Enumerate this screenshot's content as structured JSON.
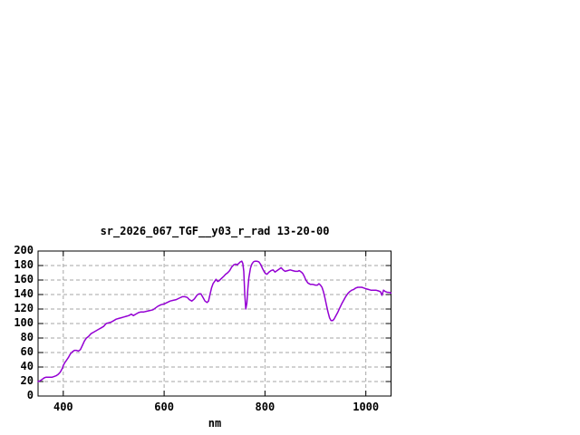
{
  "window": {
    "background": "#ffffff"
  },
  "colors": {
    "curve": "#9400d3",
    "grid": "#a6a6a6",
    "axis": "#000000",
    "text": "#000000",
    "background": "#ffffff"
  },
  "chart_data": {
    "type": "line",
    "title": "sr_2026_067_TGF__y03_r_rad 13-20-00",
    "xlabel": "nm",
    "ylabel": "",
    "xlim": [
      350,
      1050
    ],
    "ylim": [
      0,
      200
    ],
    "x_ticks": [
      400,
      600,
      800,
      1000
    ],
    "y_ticks": [
      0,
      20,
      40,
      60,
      80,
      100,
      120,
      140,
      160,
      180,
      200
    ],
    "grid": true,
    "legend": "none",
    "series": [
      {
        "name": "sr_2026_067_TGF__y03_r_rad",
        "color": "#9400d3",
        "points": [
          [
            350,
            20
          ],
          [
            354,
            21
          ],
          [
            358,
            23
          ],
          [
            362,
            25
          ],
          [
            366,
            26
          ],
          [
            370,
            26
          ],
          [
            374,
            26
          ],
          [
            378,
            26
          ],
          [
            382,
            27
          ],
          [
            386,
            28
          ],
          [
            390,
            30
          ],
          [
            394,
            33
          ],
          [
            398,
            38
          ],
          [
            400,
            42
          ],
          [
            403,
            46
          ],
          [
            406,
            49
          ],
          [
            410,
            53
          ],
          [
            414,
            58
          ],
          [
            418,
            61
          ],
          [
            422,
            63
          ],
          [
            426,
            63
          ],
          [
            430,
            62
          ],
          [
            434,
            64
          ],
          [
            438,
            70
          ],
          [
            442,
            76
          ],
          [
            446,
            80
          ],
          [
            450,
            82
          ],
          [
            455,
            86
          ],
          [
            460,
            88
          ],
          [
            465,
            90
          ],
          [
            470,
            92
          ],
          [
            475,
            94
          ],
          [
            480,
            96
          ],
          [
            485,
            100
          ],
          [
            490,
            101
          ],
          [
            495,
            102
          ],
          [
            500,
            104
          ],
          [
            505,
            106
          ],
          [
            510,
            107
          ],
          [
            515,
            108
          ],
          [
            520,
            109
          ],
          [
            525,
            110
          ],
          [
            530,
            111
          ],
          [
            535,
            113
          ],
          [
            539,
            111
          ],
          [
            544,
            113
          ],
          [
            549,
            115
          ],
          [
            554,
            116
          ],
          [
            560,
            116
          ],
          [
            566,
            117
          ],
          [
            572,
            118
          ],
          [
            578,
            119
          ],
          [
            582,
            121
          ],
          [
            588,
            124
          ],
          [
            594,
            126
          ],
          [
            600,
            127
          ],
          [
            606,
            129
          ],
          [
            612,
            131
          ],
          [
            618,
            132
          ],
          [
            624,
            133
          ],
          [
            630,
            135
          ],
          [
            636,
            137
          ],
          [
            641,
            137
          ],
          [
            646,
            136
          ],
          [
            650,
            133
          ],
          [
            655,
            131
          ],
          [
            660,
            134
          ],
          [
            665,
            139
          ],
          [
            669,
            141
          ],
          [
            673,
            141
          ],
          [
            677,
            136
          ],
          [
            681,
            131
          ],
          [
            685,
            129
          ],
          [
            688,
            131
          ],
          [
            691,
            140
          ],
          [
            694,
            149
          ],
          [
            697,
            155
          ],
          [
            700,
            158
          ],
          [
            703,
            161
          ],
          [
            706,
            158
          ],
          [
            709,
            159
          ],
          [
            712,
            161
          ],
          [
            715,
            163
          ],
          [
            718,
            165
          ],
          [
            722,
            168
          ],
          [
            726,
            170
          ],
          [
            730,
            173
          ],
          [
            734,
            178
          ],
          [
            738,
            181
          ],
          [
            742,
            182
          ],
          [
            745,
            181
          ],
          [
            748,
            183
          ],
          [
            751,
            185
          ],
          [
            754,
            186
          ],
          [
            756,
            183
          ],
          [
            758,
            172
          ],
          [
            760,
            140
          ],
          [
            762,
            120
          ],
          [
            764,
            128
          ],
          [
            766,
            148
          ],
          [
            768,
            163
          ],
          [
            771,
            176
          ],
          [
            774,
            182
          ],
          [
            777,
            185
          ],
          [
            780,
            186
          ],
          [
            784,
            186
          ],
          [
            788,
            185
          ],
          [
            792,
            181
          ],
          [
            795,
            176
          ],
          [
            798,
            172
          ],
          [
            801,
            169
          ],
          [
            804,
            168
          ],
          [
            808,
            171
          ],
          [
            812,
            173
          ],
          [
            816,
            174
          ],
          [
            820,
            171
          ],
          [
            824,
            173
          ],
          [
            828,
            175
          ],
          [
            832,
            177
          ],
          [
            836,
            174
          ],
          [
            840,
            172
          ],
          [
            845,
            173
          ],
          [
            850,
            174
          ],
          [
            855,
            173
          ],
          [
            860,
            172
          ],
          [
            865,
            172
          ],
          [
            868,
            173
          ],
          [
            872,
            171
          ],
          [
            875,
            169
          ],
          [
            878,
            165
          ],
          [
            881,
            160
          ],
          [
            885,
            156
          ],
          [
            890,
            154
          ],
          [
            895,
            154
          ],
          [
            900,
            153
          ],
          [
            904,
            153
          ],
          [
            907,
            155
          ],
          [
            910,
            153
          ],
          [
            913,
            150
          ],
          [
            916,
            144
          ],
          [
            919,
            135
          ],
          [
            922,
            125
          ],
          [
            925,
            116
          ],
          [
            928,
            108
          ],
          [
            931,
            104
          ],
          [
            934,
            104
          ],
          [
            937,
            106
          ],
          [
            940,
            110
          ],
          [
            944,
            115
          ],
          [
            948,
            121
          ],
          [
            952,
            127
          ],
          [
            956,
            132
          ],
          [
            960,
            137
          ],
          [
            964,
            141
          ],
          [
            968,
            144
          ],
          [
            972,
            146
          ],
          [
            976,
            147
          ],
          [
            980,
            149
          ],
          [
            984,
            150
          ],
          [
            988,
            150
          ],
          [
            992,
            150
          ],
          [
            996,
            149
          ],
          [
            1000,
            148
          ],
          [
            1005,
            147
          ],
          [
            1010,
            146
          ],
          [
            1015,
            146
          ],
          [
            1020,
            146
          ],
          [
            1025,
            145
          ],
          [
            1029,
            144
          ],
          [
            1032,
            139
          ],
          [
            1035,
            146
          ],
          [
            1039,
            144
          ],
          [
            1043,
            143
          ],
          [
            1047,
            143
          ],
          [
            1050,
            142
          ]
        ]
      }
    ]
  }
}
